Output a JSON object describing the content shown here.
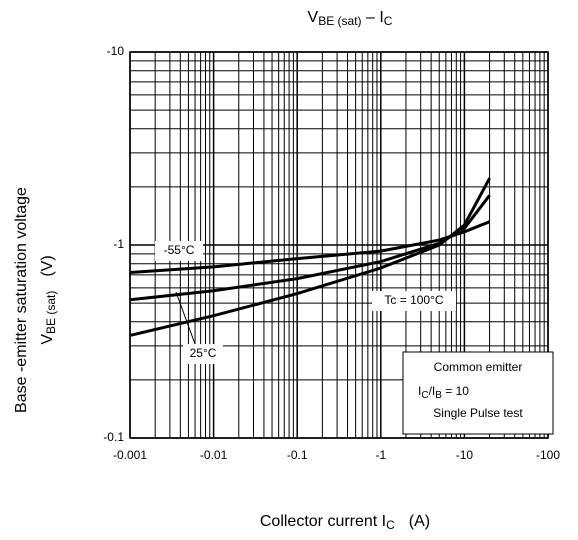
{
  "chart_data": {
    "type": "line",
    "log_x": true,
    "log_y": true,
    "grid": true,
    "minor_grid": true,
    "title": {
      "main": "V",
      "main_sub": "BE (sat)",
      "rest": " – I",
      "rest_sub": "C"
    },
    "y_label": {
      "line1": "Base -emitter saturation voltage",
      "main": "V",
      "main_sub": "BE (sat)",
      "unit": "(V)"
    },
    "x_label": {
      "main": "Collector current  I",
      "main_sub": "C",
      "unit": "(A)"
    },
    "x": [
      -0.001,
      -0.01,
      -0.1,
      -1,
      -5,
      -10,
      -20
    ],
    "series": [
      {
        "name": "-55°C",
        "color": "#000000",
        "values": [
          -0.72,
          -0.77,
          -0.85,
          -0.93,
          -1.06,
          -1.17,
          -1.32
        ]
      },
      {
        "name": "25°C",
        "color": "#000000",
        "values": [
          -0.52,
          -0.58,
          -0.67,
          -0.82,
          -1.02,
          -1.22,
          -1.81
        ]
      },
      {
        "name": "Tc = 100°C",
        "color": "#000000",
        "values": [
          -0.34,
          -0.43,
          -0.56,
          -0.76,
          -1.0,
          -1.27,
          -2.22
        ]
      }
    ],
    "xlim": [
      -0.001,
      -100
    ],
    "xticks": [
      -0.001,
      -0.01,
      -0.1,
      -1,
      -10,
      -100
    ],
    "ylim": [
      -0.1,
      -10
    ],
    "yticks": [
      -0.1,
      -1,
      -10
    ],
    "note": {
      "line1": "Common emitter",
      "line2_a": "I",
      "line2_a_sub": "C",
      "line2_b": "/I",
      "line2_b_sub": "B",
      "line2_c": " = 10",
      "line3": "Single Pulse test"
    }
  }
}
